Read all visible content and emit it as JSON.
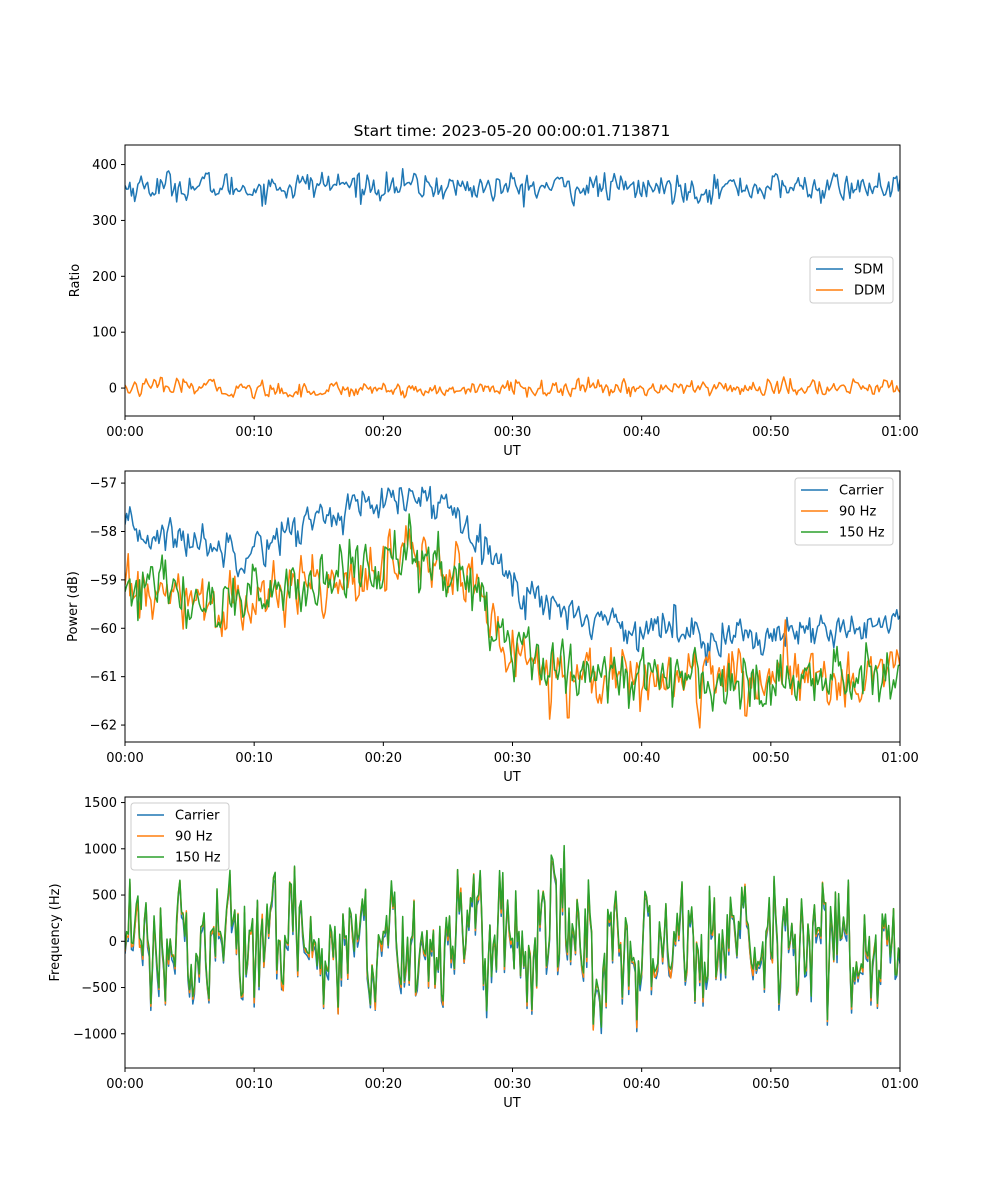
{
  "colors": {
    "blue": "#1f77b4",
    "orange": "#ff7f0e",
    "green": "#2ca02c"
  },
  "chart_data": [
    {
      "type": "line",
      "title": "Start time: 2023-05-20 00:00:01.713871",
      "xlabel": "UT",
      "ylabel": "Ratio",
      "xlim": [
        0,
        60
      ],
      "ylim": [
        -50,
        435
      ],
      "xticks": [
        {
          "v": 0,
          "label": "00:00"
        },
        {
          "v": 10,
          "label": "00:10"
        },
        {
          "v": 20,
          "label": "00:20"
        },
        {
          "v": 30,
          "label": "00:30"
        },
        {
          "v": 40,
          "label": "00:40"
        },
        {
          "v": 50,
          "label": "00:50"
        },
        {
          "v": 60,
          "label": "01:00"
        }
      ],
      "yticks": [
        {
          "v": 0,
          "label": "0"
        },
        {
          "v": 100,
          "label": "100"
        },
        {
          "v": 200,
          "label": "200"
        },
        {
          "v": 300,
          "label": "300"
        },
        {
          "v": 400,
          "label": "400"
        }
      ],
      "legend_position": "center-right",
      "series": [
        {
          "name": "SDM",
          "color": "#1f77b4",
          "noise": 14,
          "x": [
            0,
            5,
            10,
            15,
            20,
            25,
            30,
            35,
            40,
            45,
            50,
            55,
            60
          ],
          "y": [
            360,
            362,
            358,
            365,
            362,
            360,
            358,
            360,
            357,
            358,
            360,
            358,
            360
          ]
        },
        {
          "name": "DDM",
          "color": "#ff7f0e",
          "noise": 8,
          "x": [
            0,
            5,
            10,
            15,
            20,
            25,
            30,
            35,
            40,
            45,
            50,
            55,
            60
          ],
          "y": [
            0,
            2,
            -3,
            -4,
            0,
            -5,
            0,
            -2,
            0,
            0,
            0,
            0,
            0
          ]
        }
      ]
    },
    {
      "type": "line",
      "xlabel": "UT",
      "ylabel": "Power (dB)",
      "xlim": [
        0,
        60
      ],
      "ylim": [
        -62.35,
        -56.75
      ],
      "xticks": [
        {
          "v": 0,
          "label": "00:00"
        },
        {
          "v": 10,
          "label": "00:10"
        },
        {
          "v": 20,
          "label": "00:20"
        },
        {
          "v": 30,
          "label": "00:30"
        },
        {
          "v": 40,
          "label": "00:40"
        },
        {
          "v": 50,
          "label": "00:50"
        },
        {
          "v": 60,
          "label": "01:00"
        }
      ],
      "yticks": [
        {
          "v": -62,
          "label": "−62"
        },
        {
          "v": -61,
          "label": "−61"
        },
        {
          "v": -60,
          "label": "−60"
        },
        {
          "v": -59,
          "label": "−59"
        },
        {
          "v": -58,
          "label": "−58"
        },
        {
          "v": -57,
          "label": "−57"
        }
      ],
      "legend_position": "top-right",
      "series": [
        {
          "name": "Carrier",
          "color": "#1f77b4",
          "noise": 0.22,
          "x": [
            0,
            3,
            6,
            9,
            12,
            15,
            18,
            20,
            22,
            24,
            26,
            27.5,
            29,
            31,
            33,
            35,
            38,
            40,
            42,
            45,
            48,
            50,
            52,
            55,
            58,
            60
          ],
          "y": [
            -58.0,
            -58.1,
            -58.2,
            -58.4,
            -58.1,
            -57.7,
            -57.5,
            -57.5,
            -57.3,
            -57.4,
            -57.6,
            -58.0,
            -58.8,
            -59.3,
            -59.5,
            -59.7,
            -59.9,
            -60.0,
            -60.0,
            -60.1,
            -60.2,
            -60.1,
            -60.2,
            -60.1,
            -59.9,
            -59.8
          ]
        },
        {
          "name": "90 Hz",
          "color": "#ff7f0e",
          "noise": 0.35,
          "x": [
            0,
            3,
            6,
            9,
            12,
            15,
            18,
            20,
            22,
            24,
            26,
            27.5,
            29,
            31,
            33,
            35,
            38,
            40,
            42,
            45,
            48,
            50,
            52,
            55,
            58,
            60
          ],
          "y": [
            -59.2,
            -59.4,
            -59.5,
            -59.6,
            -59.3,
            -59.0,
            -58.8,
            -58.7,
            -58.5,
            -58.7,
            -58.9,
            -59.3,
            -60.3,
            -60.6,
            -60.8,
            -60.9,
            -61.0,
            -61.0,
            -61.0,
            -61.1,
            -61.1,
            -61.0,
            -61.1,
            -61.0,
            -60.9,
            -60.8
          ]
        },
        {
          "name": "150 Hz",
          "color": "#2ca02c",
          "noise": 0.35,
          "x": [
            0,
            3,
            6,
            9,
            12,
            15,
            18,
            20,
            22,
            24,
            26,
            27.5,
            29,
            31,
            33,
            35,
            38,
            40,
            42,
            45,
            48,
            50,
            52,
            55,
            58,
            60
          ],
          "y": [
            -59.1,
            -59.3,
            -59.4,
            -59.5,
            -59.2,
            -59.0,
            -58.8,
            -58.7,
            -58.6,
            -58.7,
            -58.9,
            -59.3,
            -60.2,
            -60.5,
            -60.7,
            -60.9,
            -61.0,
            -61.0,
            -61.0,
            -61.0,
            -61.1,
            -61.0,
            -61.0,
            -60.9,
            -60.9,
            -60.8
          ]
        }
      ]
    },
    {
      "type": "line",
      "xlabel": "UT",
      "ylabel": "Frequency (Hz)",
      "xlim": [
        0,
        60
      ],
      "ylim": [
        -1370,
        1560
      ],
      "xticks": [
        {
          "v": 0,
          "label": "00:00"
        },
        {
          "v": 10,
          "label": "00:10"
        },
        {
          "v": 20,
          "label": "00:20"
        },
        {
          "v": 30,
          "label": "00:30"
        },
        {
          "v": 40,
          "label": "00:40"
        },
        {
          "v": 50,
          "label": "00:50"
        },
        {
          "v": 60,
          "label": "01:00"
        }
      ],
      "yticks": [
        {
          "v": -1000,
          "label": "−1000"
        },
        {
          "v": -500,
          "label": "−500"
        },
        {
          "v": 0,
          "label": "0"
        },
        {
          "v": 500,
          "label": "500"
        },
        {
          "v": 1000,
          "label": "1000"
        },
        {
          "v": 1500,
          "label": "1500"
        }
      ],
      "legend_position": "top-left",
      "series": [
        {
          "name": "Carrier",
          "color": "#1f77b4",
          "noise": 340,
          "offset": -60,
          "x": [
            0,
            60
          ],
          "y": [
            0,
            0
          ]
        },
        {
          "name": "90 Hz",
          "color": "#ff7f0e",
          "noise": 340,
          "offset": -25,
          "x": [
            0,
            60
          ],
          "y": [
            0,
            0
          ]
        },
        {
          "name": "150 Hz",
          "color": "#2ca02c",
          "noise": 340,
          "offset": 0,
          "x": [
            0,
            60
          ],
          "y": [
            0,
            0
          ]
        }
      ]
    }
  ]
}
